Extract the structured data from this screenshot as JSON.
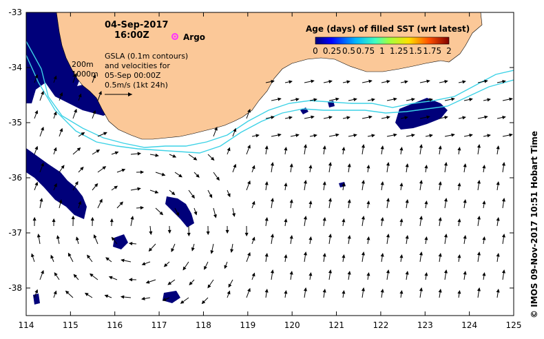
{
  "header": {
    "date": "04-Sep-2017",
    "time": "16:00Z"
  },
  "argo_label": "Argo",
  "depth_labels": [
    "200m",
    "1000m"
  ],
  "caption_lines": [
    "GSLA (0.1m contours)",
    "and velocities for",
    "05-Sep 00:00Z",
    "0.5m/s (1kt 24h)"
  ],
  "colorbar": {
    "title": "Age (days) of filled SST (wrt latest)",
    "ticks": [
      "0",
      "0.25",
      "0.5",
      "0.75",
      "1",
      "1.25",
      "1.5",
      "1.75",
      "2"
    ]
  },
  "axes": {
    "x_ticks": [
      "114",
      "115",
      "116",
      "117",
      "118",
      "119",
      "120",
      "121",
      "122",
      "123",
      "124",
      "125"
    ],
    "y_ticks": [
      "-33",
      "-34",
      "-35",
      "-36",
      "-37",
      "-38"
    ]
  },
  "credit": "© IMOS 09-Nov-2017 10:51 Hobart Time",
  "colors": {
    "land": "#fbc898",
    "sst_fill": "#00007a",
    "contour": "#3cd2e6",
    "argo": "#ff30ff",
    "arrow": "#000000"
  }
}
